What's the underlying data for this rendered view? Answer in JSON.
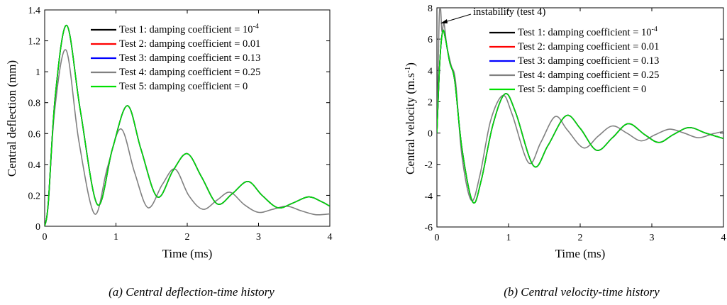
{
  "charts": [
    {
      "id": "a",
      "caption": "(a) Central deflection-time history",
      "xlabel": "Time (ms)",
      "ylabel": "Central deflection (mm)",
      "xlim": [
        0,
        4
      ],
      "ylim": [
        0,
        1.4
      ],
      "xticks": [
        "0",
        "1",
        "2",
        "3",
        "4"
      ],
      "yticks": [
        "0",
        "0.2",
        "0.4",
        "0.6",
        "0.8",
        "1",
        "1.2",
        "1.4"
      ]
    },
    {
      "id": "b",
      "caption": "(b)    Central velocity-time history",
      "xlabel": "Time (ms)",
      "ylabel": "Central velocity (m.s-1)",
      "ylabel_main": "Central velocity (m.s",
      "ylabel_sup": "-1",
      "ylabel_end": ")",
      "xlim": [
        0,
        4
      ],
      "ylim": [
        -6,
        8
      ],
      "xticks": [
        "0",
        "1",
        "2",
        "3",
        "4"
      ],
      "yticks": [
        "-6",
        "-4",
        "-2",
        "0",
        "2",
        "4",
        "6",
        "8"
      ],
      "annotation": "instability (test 4)"
    }
  ],
  "legend": [
    {
      "label": "Test 1: damping coefficient = 10",
      "sup": "-4",
      "color": "#000000"
    },
    {
      "label": "Test 2: damping coefficient = 0.01",
      "sup": "",
      "color": "#ff0000"
    },
    {
      "label": "Test 3: damping coefficient = 0.13",
      "sup": "",
      "color": "#0000ff"
    },
    {
      "label": "Test 4: damping coefficient = 0.25",
      "sup": "",
      "color": "#808080"
    },
    {
      "label": "Test 5: damping coefficient = 0",
      "sup": "",
      "color": "#00e000"
    }
  ],
  "chart_data": [
    {
      "type": "line",
      "title": "(a) Central deflection-time history",
      "xlabel": "Time (ms)",
      "ylabel": "Central deflection (mm)",
      "xlim": [
        0,
        4
      ],
      "ylim": [
        0,
        1.4
      ],
      "series": [
        {
          "name": "Test 1: damping coefficient = 10^-4",
          "color": "#000000",
          "x": [
            0,
            0.05,
            0.15,
            0.31,
            0.5,
            0.74,
            0.95,
            1.16,
            1.35,
            1.58,
            1.8,
            2.0,
            2.2,
            2.42,
            2.63,
            2.85,
            3.05,
            3.27,
            3.48,
            3.7,
            3.88,
            4.0
          ],
          "y": [
            0,
            0.15,
            0.85,
            1.3,
            0.75,
            0.14,
            0.5,
            0.78,
            0.5,
            0.19,
            0.36,
            0.47,
            0.32,
            0.145,
            0.21,
            0.29,
            0.2,
            0.12,
            0.15,
            0.19,
            0.16,
            0.13
          ]
        },
        {
          "name": "Test 2: damping coefficient = 0.01",
          "color": "#ff0000",
          "x": [
            0,
            0.05,
            0.15,
            0.31,
            0.5,
            0.74,
            0.95,
            1.16,
            1.35,
            1.58,
            1.8,
            2.0,
            2.2,
            2.42,
            2.63,
            2.85,
            3.05,
            3.27,
            3.48,
            3.7,
            3.88,
            4.0
          ],
          "y": [
            0,
            0.15,
            0.85,
            1.3,
            0.75,
            0.14,
            0.5,
            0.78,
            0.5,
            0.19,
            0.36,
            0.47,
            0.32,
            0.145,
            0.21,
            0.29,
            0.2,
            0.12,
            0.15,
            0.19,
            0.16,
            0.13
          ]
        },
        {
          "name": "Test 3: damping coefficient = 0.13",
          "color": "#0000ff",
          "x": [
            0,
            0.05,
            0.15,
            0.31,
            0.5,
            0.74,
            0.95,
            1.16,
            1.35,
            1.58,
            1.8,
            2.0,
            2.2,
            2.42,
            2.63,
            2.85,
            3.05,
            3.27,
            3.48,
            3.7,
            3.88,
            4.0
          ],
          "y": [
            0,
            0.15,
            0.85,
            1.3,
            0.75,
            0.14,
            0.5,
            0.78,
            0.5,
            0.19,
            0.36,
            0.47,
            0.32,
            0.145,
            0.21,
            0.29,
            0.2,
            0.12,
            0.15,
            0.19,
            0.16,
            0.13
          ]
        },
        {
          "name": "Test 4: damping coefficient = 0.25",
          "color": "#808080",
          "x": [
            0,
            0.05,
            0.14,
            0.3,
            0.48,
            0.7,
            0.88,
            1.07,
            1.26,
            1.45,
            1.65,
            1.83,
            2.02,
            2.22,
            2.42,
            2.6,
            2.8,
            3.0,
            3.2,
            3.4,
            3.6,
            3.8,
            4.0
          ],
          "y": [
            0,
            0.14,
            0.75,
            1.14,
            0.55,
            0.08,
            0.38,
            0.63,
            0.35,
            0.12,
            0.27,
            0.37,
            0.2,
            0.11,
            0.17,
            0.22,
            0.14,
            0.09,
            0.11,
            0.13,
            0.1,
            0.075,
            0.08
          ]
        },
        {
          "name": "Test 5: damping coefficient = 0",
          "color": "#00e000",
          "x": [
            0,
            0.05,
            0.15,
            0.31,
            0.5,
            0.74,
            0.95,
            1.16,
            1.35,
            1.58,
            1.8,
            2.0,
            2.2,
            2.42,
            2.63,
            2.85,
            3.05,
            3.27,
            3.48,
            3.7,
            3.88,
            4.0
          ],
          "y": [
            0,
            0.15,
            0.85,
            1.3,
            0.75,
            0.14,
            0.5,
            0.78,
            0.5,
            0.19,
            0.36,
            0.47,
            0.32,
            0.145,
            0.21,
            0.29,
            0.2,
            0.12,
            0.15,
            0.19,
            0.16,
            0.13
          ]
        }
      ]
    },
    {
      "type": "line",
      "title": "(b)    Central velocity-time history",
      "xlabel": "Time (ms)",
      "ylabel": "Central velocity (m.s-1)",
      "xlim": [
        0,
        4
      ],
      "ylim": [
        -6,
        8
      ],
      "series": [
        {
          "name": "Test 1: damping coefficient = 10^-4",
          "color": "#000000",
          "x": [
            0,
            0.04,
            0.08,
            0.12,
            0.18,
            0.25,
            0.35,
            0.5,
            0.62,
            0.78,
            0.95,
            1.1,
            1.35,
            1.55,
            1.8,
            2.0,
            2.23,
            2.45,
            2.67,
            2.9,
            3.1,
            3.3,
            3.52,
            3.75,
            4.0
          ],
          "y": [
            0,
            4.5,
            6.5,
            6.0,
            4.5,
            3.3,
            -1.0,
            -4.4,
            -3.0,
            0.5,
            2.5,
            1.3,
            -2.1,
            -0.8,
            1.1,
            0.3,
            -1.1,
            -0.3,
            0.6,
            -0.1,
            -0.6,
            -0.1,
            0.35,
            0.0,
            -0.35
          ]
        },
        {
          "name": "Test 2: damping coefficient = 0.01",
          "color": "#ff0000",
          "x": [
            0,
            0.04,
            0.08,
            0.12,
            0.18,
            0.25,
            0.35,
            0.5,
            0.62,
            0.78,
            0.95,
            1.1,
            1.35,
            1.55,
            1.8,
            2.0,
            2.23,
            2.45,
            2.67,
            2.9,
            3.1,
            3.3,
            3.52,
            3.75,
            4.0
          ],
          "y": [
            0,
            4.5,
            6.5,
            6.0,
            4.5,
            3.3,
            -1.0,
            -4.4,
            -3.0,
            0.5,
            2.5,
            1.3,
            -2.1,
            -0.8,
            1.1,
            0.3,
            -1.1,
            -0.3,
            0.6,
            -0.1,
            -0.6,
            -0.1,
            0.35,
            0.0,
            -0.35
          ]
        },
        {
          "name": "Test 3: damping coefficient = 0.13",
          "color": "#0000ff",
          "x": [
            0,
            0.04,
            0.08,
            0.12,
            0.18,
            0.25,
            0.35,
            0.5,
            0.62,
            0.78,
            0.95,
            1.1,
            1.35,
            1.55,
            1.8,
            2.0,
            2.23,
            2.45,
            2.67,
            2.9,
            3.1,
            3.3,
            3.52,
            3.75,
            4.0
          ],
          "y": [
            0,
            4.5,
            6.5,
            6.0,
            4.5,
            3.3,
            -1.0,
            -4.4,
            -3.0,
            0.5,
            2.5,
            1.3,
            -2.1,
            -0.8,
            1.1,
            0.3,
            -1.1,
            -0.3,
            0.6,
            -0.1,
            -0.6,
            -0.1,
            0.35,
            0.0,
            -0.35
          ]
        },
        {
          "name": "Test 4: damping coefficient = 0.25",
          "color": "#808080",
          "x": [
            0,
            0.03,
            0.05,
            0.07,
            0.1,
            0.14,
            0.2,
            0.26,
            0.35,
            0.48,
            0.6,
            0.75,
            0.92,
            1.05,
            1.28,
            1.45,
            1.65,
            1.82,
            2.05,
            2.25,
            2.45,
            2.65,
            2.85,
            3.05,
            3.25,
            3.45,
            3.65,
            3.85,
            4.0
          ],
          "y": [
            0,
            7.0,
            8.0,
            6.5,
            7.0,
            5.5,
            4.3,
            3.3,
            -1.5,
            -4.3,
            -2.7,
            0.8,
            2.4,
            1.2,
            -1.9,
            -0.6,
            1.05,
            0.2,
            -0.95,
            -0.2,
            0.45,
            0.0,
            -0.5,
            -0.1,
            0.25,
            0.0,
            -0.3,
            -0.05,
            0.1
          ]
        },
        {
          "name": "Test 5: damping coefficient = 0",
          "color": "#00e000",
          "x": [
            0,
            0.04,
            0.08,
            0.12,
            0.18,
            0.25,
            0.35,
            0.5,
            0.62,
            0.78,
            0.95,
            1.1,
            1.35,
            1.55,
            1.8,
            2.0,
            2.23,
            2.45,
            2.67,
            2.9,
            3.1,
            3.3,
            3.52,
            3.75,
            4.0
          ],
          "y": [
            0,
            4.5,
            6.5,
            6.0,
            4.5,
            3.3,
            -1.0,
            -4.4,
            -3.0,
            0.5,
            2.5,
            1.3,
            -2.1,
            -0.8,
            1.1,
            0.3,
            -1.1,
            -0.3,
            0.6,
            -0.1,
            -0.6,
            -0.1,
            0.35,
            0.0,
            -0.35
          ]
        }
      ]
    }
  ]
}
